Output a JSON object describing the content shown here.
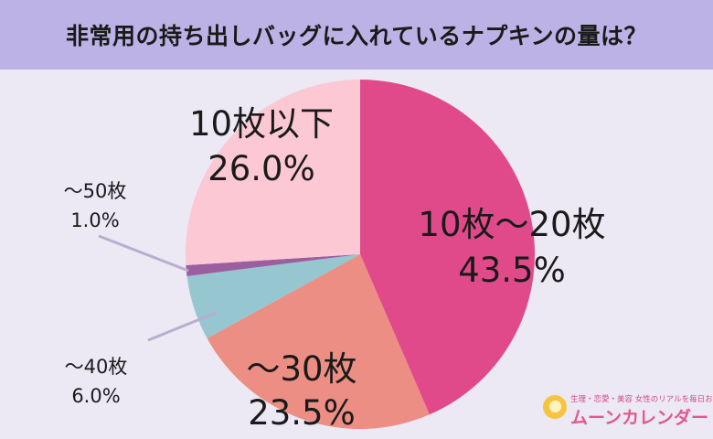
{
  "header": {
    "title": "非常用の持ち出しバッグに入れているナプキンの量は？"
  },
  "chart_data": {
    "type": "pie",
    "title": "非常用の持ち出しバッグに入れているナプキンの量は？",
    "start_angle_deg": 0,
    "direction": "clockwise",
    "slices": [
      {
        "label": "10枚〜20枚",
        "value": 43.5,
        "value_label": "43.5%",
        "color": "#e14a8a"
      },
      {
        "label": "〜30枚",
        "value": 23.5,
        "value_label": "23.5%",
        "color": "#ec8e84"
      },
      {
        "label": "〜40枚",
        "value": 6.0,
        "value_label": "6.0%",
        "color": "#96c6cf"
      },
      {
        "label": "〜50枚",
        "value": 1.0,
        "value_label": "1.0%",
        "color": "#9b5e9f"
      },
      {
        "label": "10枚以下",
        "value": 26.0,
        "value_label": "26.0%",
        "color": "#fbc8d3"
      }
    ]
  },
  "logo": {
    "tagline": "生理・恋愛・美容 女性のリアルを毎日お届け♪",
    "name": "ムーンカレンダー"
  }
}
